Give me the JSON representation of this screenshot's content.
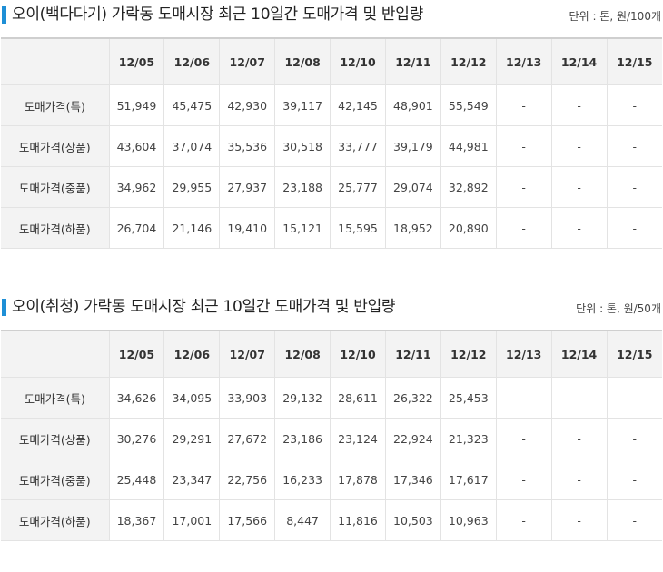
{
  "sections": [
    {
      "title": "오이(백다다기) 가락동 도매시장 최근 10일간 도매가격 및 반입량",
      "unit": "단위 : 톤, 원/100개",
      "dates": [
        "12/05",
        "12/06",
        "12/07",
        "12/08",
        "12/10",
        "12/11",
        "12/12",
        "12/13",
        "12/14",
        "12/15"
      ],
      "rows": [
        {
          "label": "도매가격(특)",
          "values": [
            "51,949",
            "45,475",
            "42,930",
            "39,117",
            "42,145",
            "48,901",
            "55,549",
            "-",
            "-",
            "-"
          ]
        },
        {
          "label": "도매가격(상품)",
          "values": [
            "43,604",
            "37,074",
            "35,536",
            "30,518",
            "33,777",
            "39,179",
            "44,981",
            "-",
            "-",
            "-"
          ]
        },
        {
          "label": "도매가격(중품)",
          "values": [
            "34,962",
            "29,955",
            "27,937",
            "23,188",
            "25,777",
            "29,074",
            "32,892",
            "-",
            "-",
            "-"
          ]
        },
        {
          "label": "도매가격(하품)",
          "values": [
            "26,704",
            "21,146",
            "19,410",
            "15,121",
            "15,595",
            "18,952",
            "20,890",
            "-",
            "-",
            "-"
          ]
        }
      ]
    },
    {
      "title": "오이(취청) 가락동 도매시장 최근 10일간 도매가격 및 반입량",
      "unit": "단위 : 톤, 원/50개",
      "dates": [
        "12/05",
        "12/06",
        "12/07",
        "12/08",
        "12/10",
        "12/11",
        "12/12",
        "12/13",
        "12/14",
        "12/15"
      ],
      "rows": [
        {
          "label": "도매가격(특)",
          "values": [
            "34,626",
            "34,095",
            "33,903",
            "29,132",
            "28,611",
            "26,322",
            "25,453",
            "-",
            "-",
            "-"
          ]
        },
        {
          "label": "도매가격(상품)",
          "values": [
            "30,276",
            "29,291",
            "27,672",
            "23,186",
            "23,124",
            "22,924",
            "21,323",
            "-",
            "-",
            "-"
          ]
        },
        {
          "label": "도매가격(중품)",
          "values": [
            "25,448",
            "23,347",
            "22,756",
            "16,233",
            "17,878",
            "17,346",
            "17,617",
            "-",
            "-",
            "-"
          ]
        },
        {
          "label": "도매가격(하품)",
          "values": [
            "18,367",
            "17,001",
            "17,566",
            "8,447",
            "11,816",
            "10,503",
            "10,963",
            "-",
            "-",
            "-"
          ]
        }
      ]
    }
  ]
}
